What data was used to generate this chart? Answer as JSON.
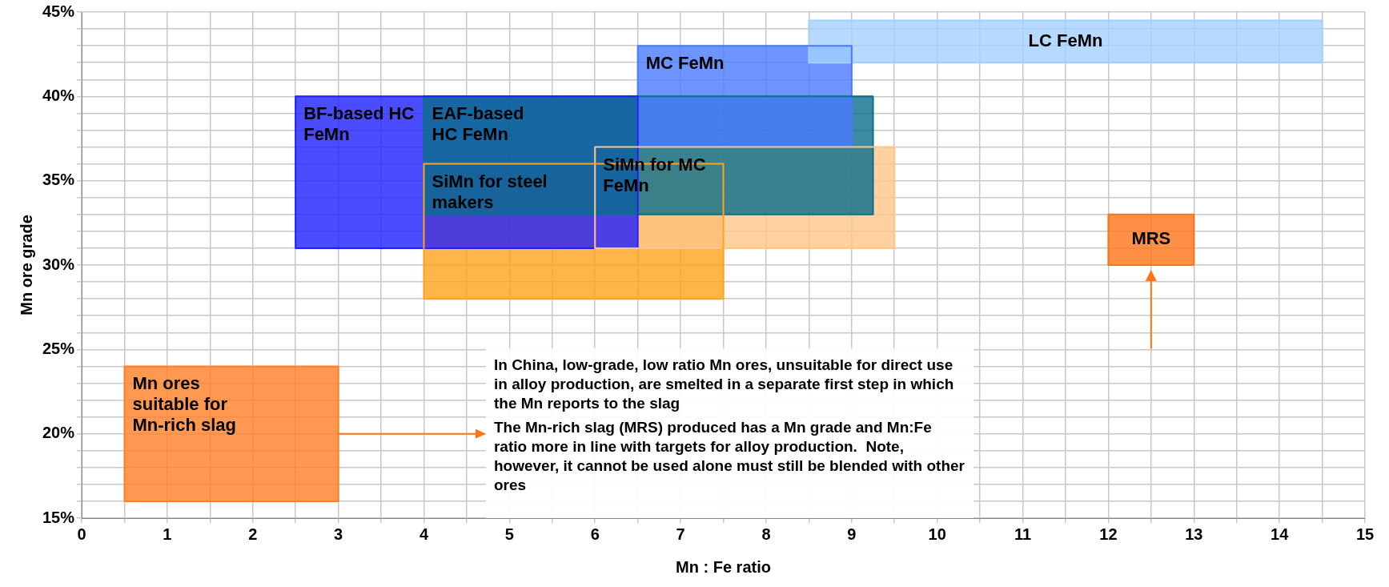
{
  "chart_data": {
    "type": "area",
    "xlabel": "Mn : Fe ratio",
    "ylabel": "Mn ore grade",
    "xlim": [
      0,
      15
    ],
    "xticks": [
      0,
      {
        "value": 0.5,
        "label": null
      },
      1,
      {
        "value": 1.5,
        "label": null
      },
      2,
      {
        "value": 2.5,
        "label": null
      },
      3,
      {
        "value": 3.5,
        "label": null
      },
      4,
      {
        "value": 4.5,
        "label": null
      },
      5,
      {
        "value": 5.5,
        "label": null
      },
      6,
      {
        "value": 6.5,
        "label": null
      },
      7,
      {
        "value": 7.5,
        "label": null
      },
      8,
      {
        "value": 8.5,
        "label": null
      },
      9,
      {
        "value": 9.5,
        "label": null
      },
      10,
      {
        "value": 10.5,
        "label": null
      },
      11,
      {
        "value": 11.5,
        "label": null
      },
      12,
      {
        "value": 12.5,
        "label": null
      },
      13,
      {
        "value": 13.5,
        "label": null
      },
      14,
      {
        "value": 14.5,
        "label": null
      },
      15
    ],
    "ylim": [
      15,
      45
    ],
    "yticks": [
      {
        "value": 15,
        "label": "15%"
      },
      {
        "value": 16,
        "label": null
      },
      {
        "value": 17,
        "label": null
      },
      {
        "value": 18,
        "label": null
      },
      {
        "value": 19,
        "label": null
      },
      {
        "value": 20,
        "label": "20%"
      },
      {
        "value": 21,
        "label": null
      },
      {
        "value": 22,
        "label": null
      },
      {
        "value": 23,
        "label": null
      },
      {
        "value": 24,
        "label": null
      },
      {
        "value": 25,
        "label": "25%"
      },
      {
        "value": 26,
        "label": null
      },
      {
        "value": 27,
        "label": null
      },
      {
        "value": 28,
        "label": null
      },
      {
        "value": 29,
        "label": null
      },
      {
        "value": 30,
        "label": "30%"
      },
      {
        "value": 31,
        "label": null
      },
      {
        "value": 32,
        "label": null
      },
      {
        "value": 33,
        "label": null
      },
      {
        "value": 34,
        "label": null
      },
      {
        "value": 35,
        "label": "35%"
      },
      {
        "value": 36,
        "label": null
      },
      {
        "value": 37,
        "label": null
      },
      {
        "value": 38,
        "label": null
      },
      {
        "value": 39,
        "label": null
      },
      {
        "value": 40,
        "label": "40%"
      },
      {
        "value": 41,
        "label": null
      },
      {
        "value": 42,
        "label": null
      },
      {
        "value": 43,
        "label": null
      },
      {
        "value": 44,
        "label": null
      },
      {
        "value": 45,
        "label": "45%"
      }
    ],
    "grid": true,
    "legend": false,
    "marker": "none",
    "series": [
      {
        "name": "Mn ores suitable for Mn-rich slag",
        "color": "#ff7f27",
        "x": [
          0.5,
          3,
          3,
          0.5,
          0.5
        ],
        "values": [
          16,
          16,
          24,
          24,
          16
        ]
      },
      {
        "name": "SiMn for steel makers",
        "color": "#ffa31a",
        "x": [
          4,
          7.5,
          7.5,
          4,
          4
        ],
        "values": [
          28,
          28,
          36,
          36,
          28
        ]
      },
      {
        "name": "SiMn for MC FeMn",
        "color": "#ffc58a",
        "x": [
          6,
          9.5,
          9.5,
          6,
          6
        ],
        "values": [
          31,
          31,
          37,
          37,
          31
        ]
      },
      {
        "name": "BF-based HC FeMn",
        "color": "#1f1fff",
        "x": [
          2.5,
          6.5,
          6.5,
          2.5,
          2.5
        ],
        "values": [
          31,
          31,
          40,
          40,
          31
        ]
      },
      {
        "name": "EAF-based HC FeMn",
        "color": "#0a6e8c",
        "x": [
          4,
          9.25,
          9.25,
          4,
          4
        ],
        "values": [
          33,
          33,
          40,
          40,
          33
        ]
      },
      {
        "name": "MC FeMn",
        "color": "#4a7aff",
        "x": [
          6.5,
          9,
          9,
          6.5,
          6.5
        ],
        "values": [
          37,
          37,
          43,
          43,
          37
        ]
      },
      {
        "name": "LC FeMn",
        "color": "#a2d0ff",
        "x": [
          8.5,
          14.5,
          14.5,
          8.5,
          8.5
        ],
        "values": [
          42,
          42,
          44.5,
          44.5,
          42
        ]
      },
      {
        "name": "MRS",
        "color": "#ff7418",
        "x": [
          12,
          13,
          13,
          12,
          12
        ],
        "values": [
          30,
          30,
          33,
          33,
          30
        ]
      }
    ],
    "annotations": [
      "In China, low-grade, low ratio Mn ores, unsuitable for direct use in alloy production, are smelted in a separate first step in which the Mn reports to the slag",
      "The Mn-rich slag (MRS) produced has a Mn grade and Mn:Fe ratio more in line with targets for alloy production.  Note, however, it cannot be used alone must still be blended with other ores"
    ]
  }
}
